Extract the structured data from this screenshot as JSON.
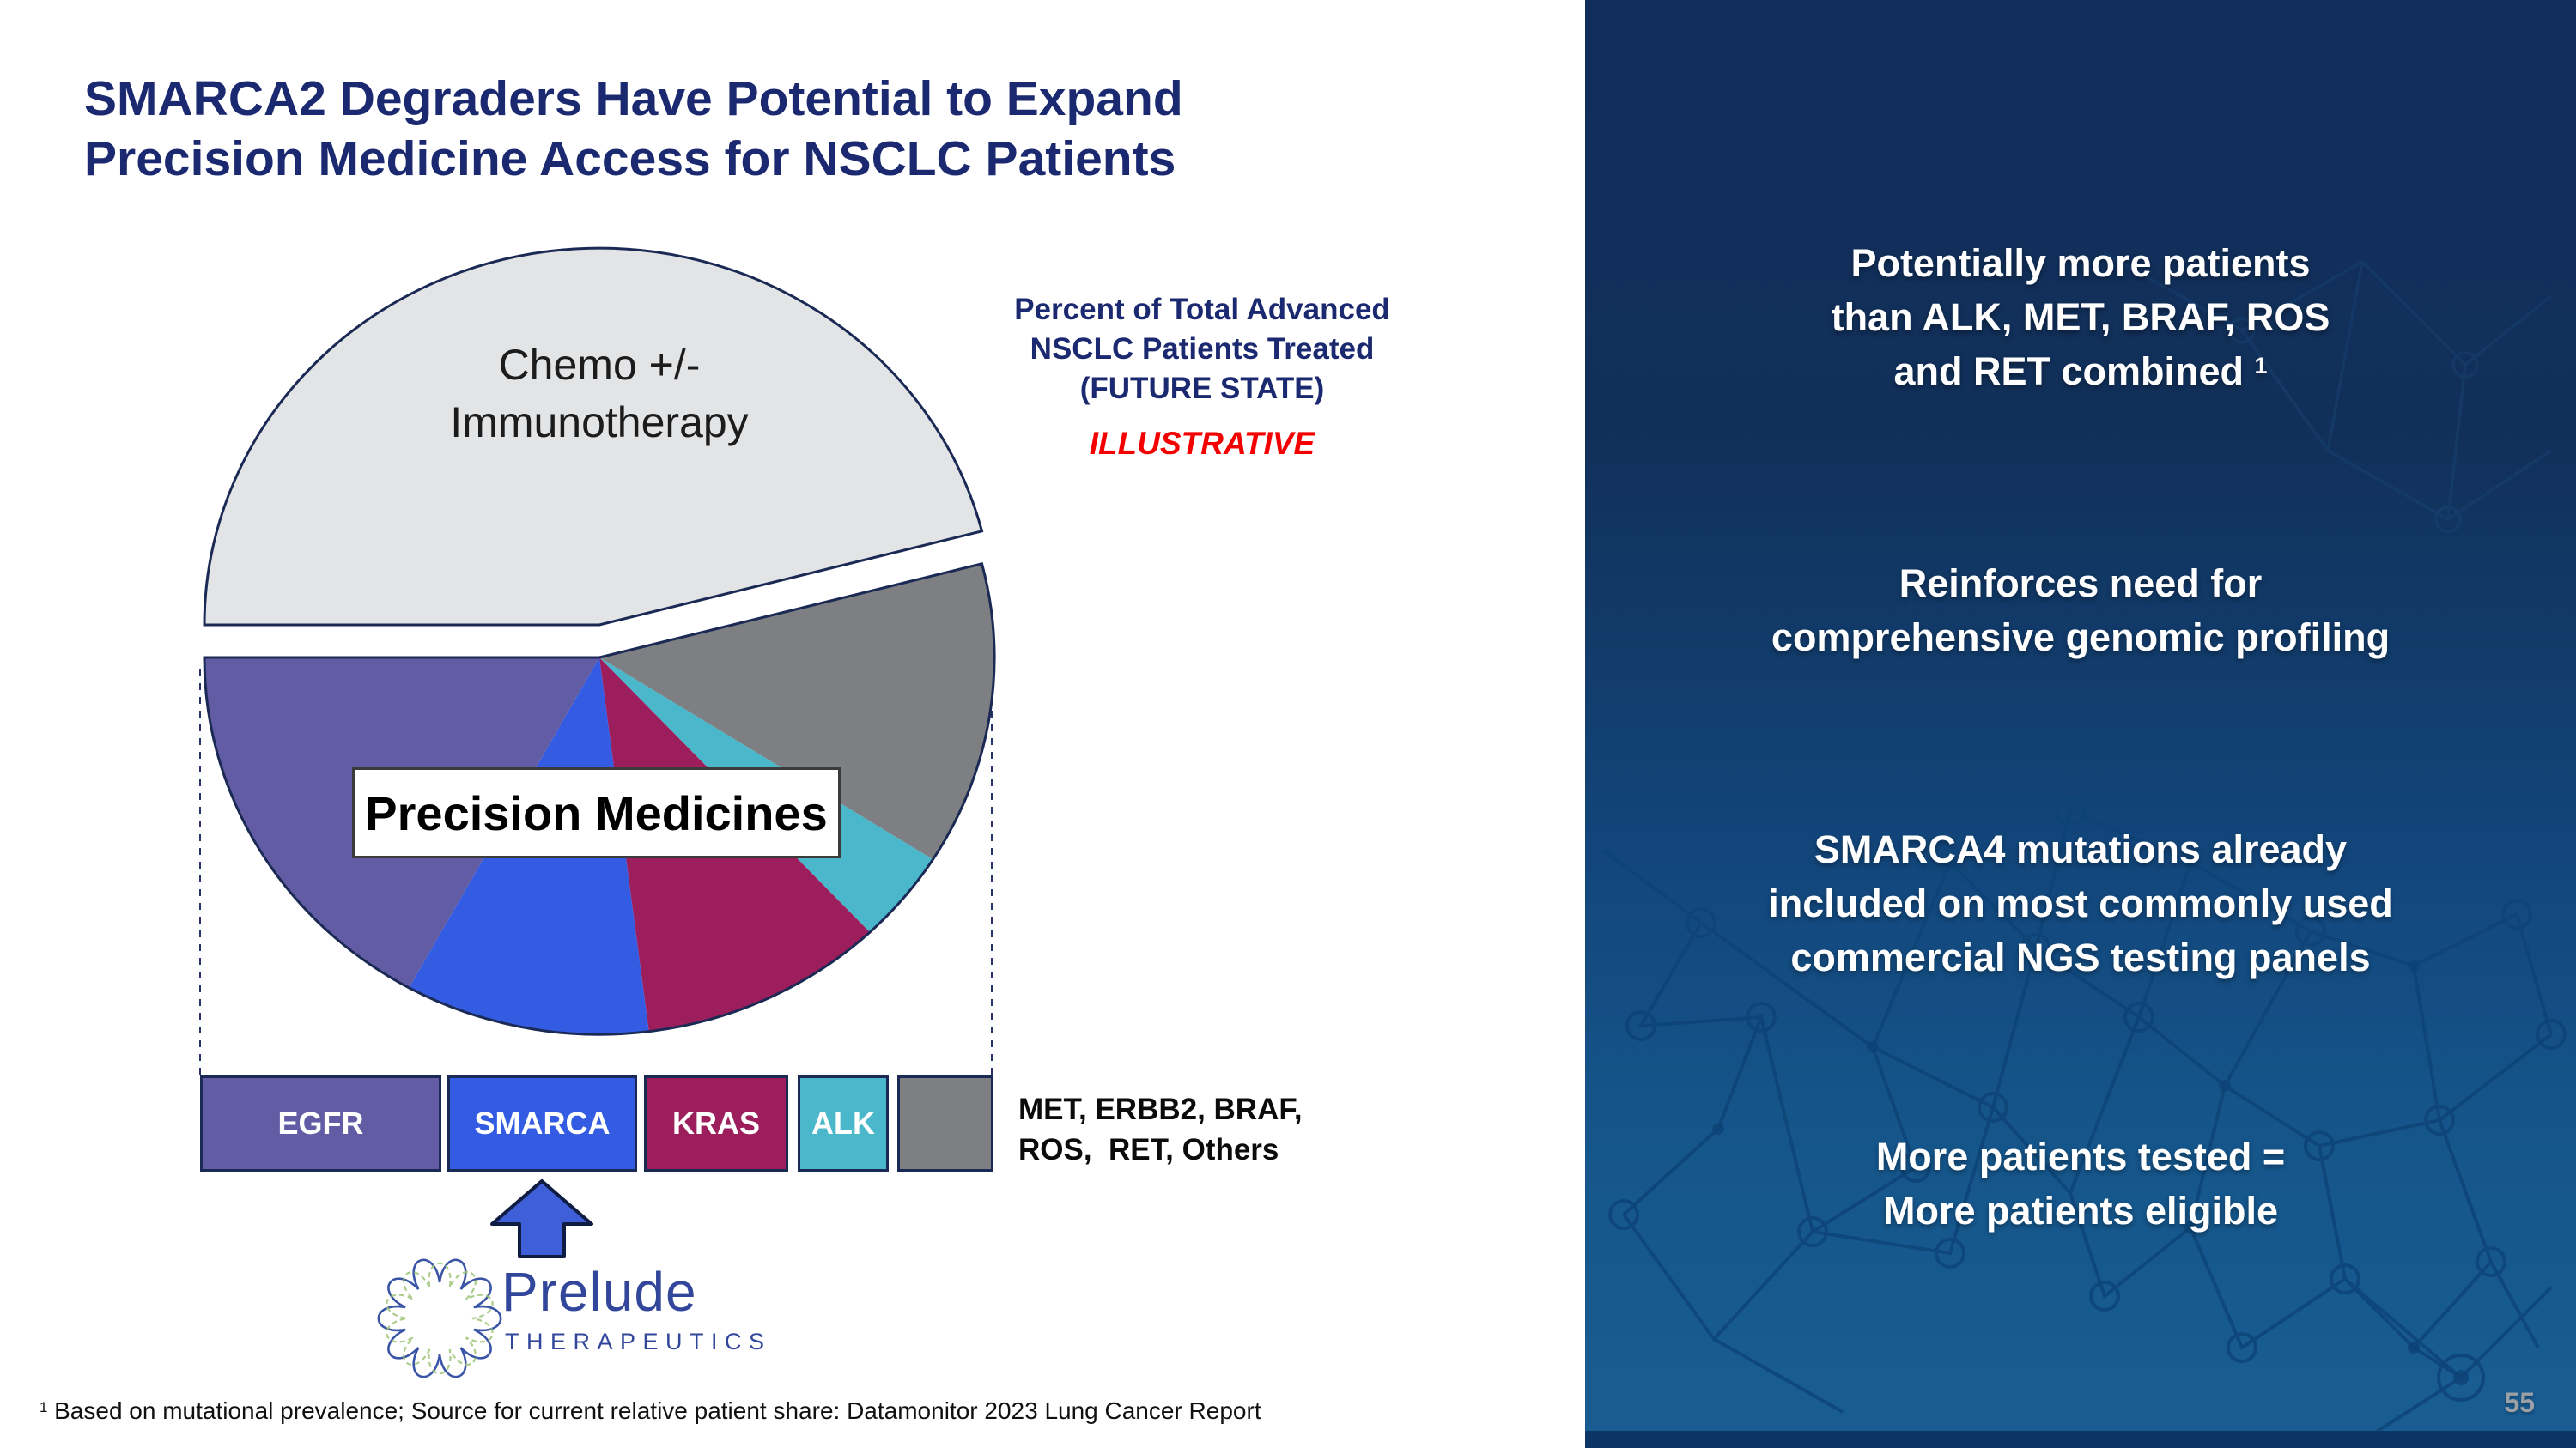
{
  "slide": {
    "title_line1": "SMARCA2 Degraders Have Potential to Expand",
    "title_line2": "Precision Medicine Access for NSCLC Patients",
    "footnote_sup": "1",
    "footnote": " Based on mutational prevalence; Source for current relative patient share: Datamonitor 2023 Lung Cancer Report",
    "page_number": "55",
    "colors": {
      "title_navy": "#1B2970",
      "accent_red": "#F40000",
      "panel_navy_top": "#112E5B",
      "panel_blue_bottom": "#185C92",
      "outline_navy": "#1B2A55"
    }
  },
  "chart": {
    "heading_line1": "Percent of Total Advanced",
    "heading_line2": "NSCLC Patients Treated",
    "heading_line3": "(FUTURE STATE)",
    "illustrative_label": "ILLUSTRATIVE",
    "chemo_label_line1": "Chemo +/-",
    "chemo_label_line2": "Immunotherapy",
    "precision_label": "Precision Medicines"
  },
  "chart_data": {
    "type": "pie",
    "title": "Percent of Total Advanced NSCLC Patients Treated (FUTURE STATE)",
    "annotation": "ILLUSTRATIVE",
    "units": "percent of total advanced NSCLC patients (illustrative)",
    "slices": [
      {
        "label": "Chemo +/- Immunotherapy",
        "value": 46,
        "color": "#E3E4E6",
        "exploded": true
      },
      {
        "label": "MET, ERBB2, BRAF, ROS, RET, Others",
        "value": 13,
        "color": "#7E7F83",
        "exploded": false
      },
      {
        "label": "ALK",
        "value": 4,
        "color": "#4AB7CA",
        "exploded": false
      },
      {
        "label": "KRAS",
        "value": 10,
        "color": "#9C1E5D",
        "exploded": false
      },
      {
        "label": "SMARCA",
        "value": 10,
        "color": "#335CE2",
        "exploded": false
      },
      {
        "label": "EGFR",
        "value": 17,
        "color": "#615CA4",
        "exploded": false
      }
    ],
    "group_label": "Precision Medicines",
    "legend_position": "bottom"
  },
  "legend": {
    "items": [
      {
        "label": "EGFR",
        "color": "#615CA4"
      },
      {
        "label": "SMARCA",
        "color": "#335CE2"
      },
      {
        "label": "KRAS",
        "color": "#9C1E5D"
      },
      {
        "label": "ALK",
        "color": "#4AB7CA"
      },
      {
        "label": "",
        "color": "#7E7F83"
      }
    ],
    "others_line1": "MET, ERBB2, BRAF,",
    "others_line2": "ROS,  RET, Others"
  },
  "logo": {
    "name": "Prelude",
    "subtitle": "THERAPEUTICS"
  },
  "right_panel": {
    "blocks": [
      {
        "lines": [
          "Potentially more patients",
          "than ALK, MET, BRAF, ROS",
          "and RET combined "
        ],
        "sup": "1"
      },
      {
        "lines": [
          "Reinforces need for",
          "comprehensive genomic profiling"
        ]
      },
      {
        "lines": [
          "SMARCA4 mutations already",
          "included on most commonly used",
          "commercial NGS testing panels"
        ]
      },
      {
        "lines": [
          "More patients tested =",
          "More patients eligible"
        ]
      }
    ]
  }
}
